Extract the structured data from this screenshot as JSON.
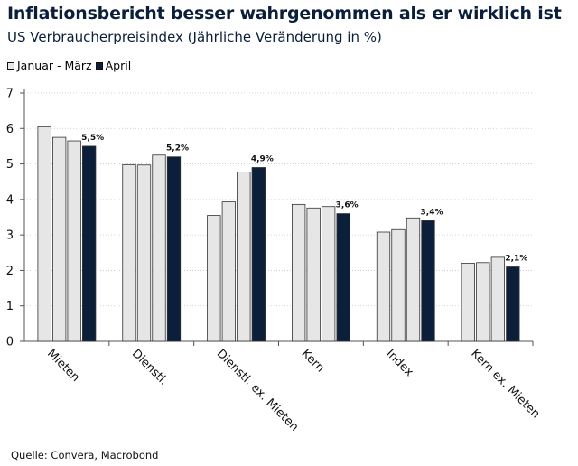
{
  "header": {
    "title": "Inflationsbericht besser wahrgenommen als er wirklich ist",
    "subtitle": "US Verbraucherpreisindex (Jährliche Veränderung in %)"
  },
  "footer": {
    "source": "Quelle: Convera, Macrobond"
  },
  "colors": {
    "light_bar": "#e6e6e6",
    "dark_bar": "#0b1f3a",
    "title": "#0b1f3a"
  },
  "chart_data": {
    "type": "bar",
    "title": "Inflationsbericht besser wahrgenommen als er wirklich ist",
    "subtitle": "US Verbraucherpreisindex (Jährliche Veränderung in %)",
    "categories": [
      "Mieten",
      "Dienstl.",
      "Dienstl. ex. Mieten",
      "Kern",
      "Index",
      "Kern ex. Mieten"
    ],
    "bars_per_category": [
      [
        6.05,
        5.75,
        5.65,
        5.5
      ],
      [
        4.98,
        4.97,
        5.25,
        5.2
      ],
      [
        3.55,
        3.93,
        4.77,
        4.9
      ],
      [
        3.86,
        3.76,
        3.8,
        3.6
      ],
      [
        3.08,
        3.15,
        3.48,
        3.4
      ],
      [
        2.2,
        2.22,
        2.37,
        2.1
      ]
    ],
    "bar_groups": [
      "Januar - März",
      "Januar - März",
      "Januar - März",
      "April"
    ],
    "legend": [
      {
        "name": "Januar - März",
        "color": "#e6e6e6"
      },
      {
        "name": "April",
        "color": "#0b1f3a"
      }
    ],
    "data_labels": [
      "5,5%",
      "5,2%",
      "4,9%",
      "3,6%",
      "3,4%",
      "2,1%"
    ],
    "y_ticks": [
      "0",
      "1",
      "2",
      "3",
      "4",
      "5",
      "6",
      "7"
    ],
    "ylim": [
      0,
      7
    ],
    "grid": true,
    "legend_position": "top-left",
    "xlabel": "",
    "ylabel": ""
  }
}
